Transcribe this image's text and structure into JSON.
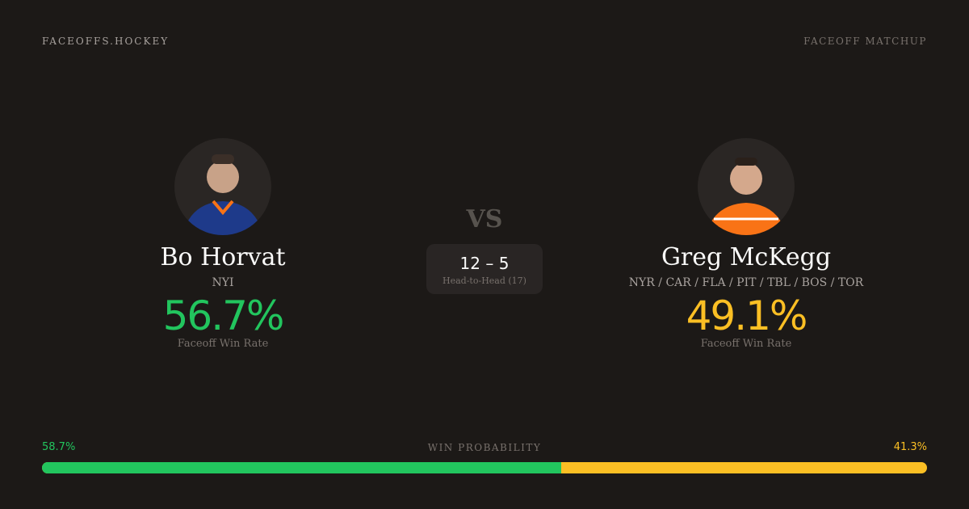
{
  "brand": "FACEOFFS.HOCKEY",
  "tag": "FACEOFF MATCHUP",
  "vs": "VS",
  "players": [
    {
      "name": "Bo Horvat",
      "team": "NYI",
      "rate": "56.7%",
      "rate_label": "Faceoff Win Rate",
      "color": "#22c55e",
      "jersey": "#1e3a8a",
      "trim": "#f97316"
    },
    {
      "name": "Greg McKegg",
      "team": "NYR / CAR / FLA / PIT / TBL / BOS / TOR",
      "rate": "49.1%",
      "rate_label": "Faceoff Win Rate",
      "color": "#fbbf24",
      "jersey": "#f97316",
      "trim": "#1e3a8a"
    }
  ],
  "h2h": {
    "score": "12 – 5",
    "label": "Head-to-Head (17)"
  },
  "win_probability": {
    "label": "WIN PROBABILITY",
    "left": "58.7%",
    "right": "41.3%",
    "left_value": 58.7,
    "right_value": 41.3
  }
}
